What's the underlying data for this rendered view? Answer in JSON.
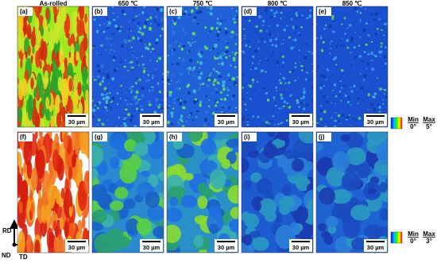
{
  "columns": [
    "As-rolled",
    "650 ℃",
    "750 ℃",
    "800 ℃",
    "850 ℃"
  ],
  "panels": [
    {
      "label": "(a)",
      "scale": "30 µm"
    },
    {
      "label": "(b)",
      "scale": "30 µm"
    },
    {
      "label": "(c)",
      "scale": "30 µm"
    },
    {
      "label": "(d)",
      "scale": "30 µm"
    },
    {
      "label": "(e)",
      "scale": "30 µm"
    },
    {
      "label": "(f)",
      "scale": "30 µm"
    },
    {
      "label": "(g)",
      "scale": "30 µm"
    },
    {
      "label": "(h)",
      "scale": "30 µm"
    },
    {
      "label": "(i)",
      "scale": "30 µm"
    },
    {
      "label": "(j)",
      "scale": "30 µm"
    }
  ],
  "legends": [
    {
      "min": "Min",
      "max": "Max",
      "min_value": "0°",
      "max_value": "5°"
    },
    {
      "min": "Min",
      "max": "Max",
      "min_value": "0°",
      "max_value": "3°"
    }
  ],
  "axes": {
    "rd": "RD",
    "nd": "ND",
    "td": "TD"
  }
}
